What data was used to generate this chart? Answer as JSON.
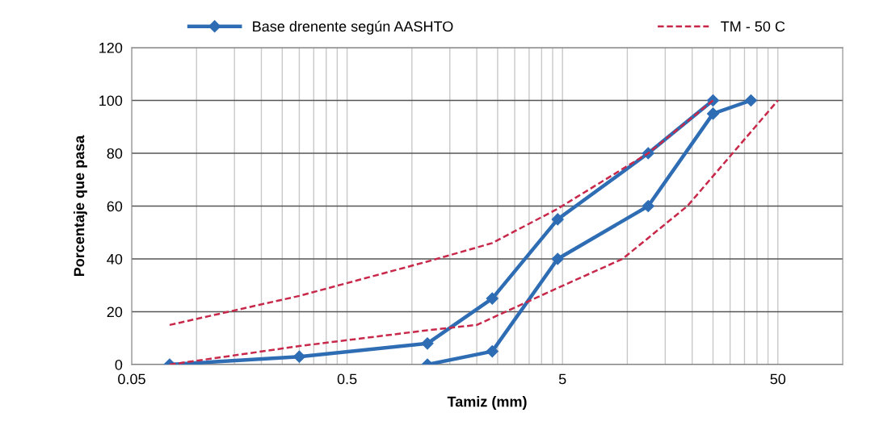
{
  "chart_data": {
    "type": "line",
    "xlabel": "Tamiz (mm)",
    "ylabel": "Porcentaje que pasa",
    "log": "x",
    "xlim": [
      0.05,
      100
    ],
    "ylim": [
      0,
      120
    ],
    "xticks": [
      0.05,
      {
        "value": 0.1,
        "label": null
      },
      {
        "value": 0.15,
        "label": null
      },
      {
        "value": 0.2,
        "label": null
      },
      {
        "value": 0.25,
        "label": null
      },
      {
        "value": 0.3,
        "label": null
      },
      {
        "value": 0.35,
        "label": null
      },
      {
        "value": 0.4,
        "label": null
      },
      {
        "value": 0.45,
        "label": null
      },
      0.5,
      {
        "value": 1,
        "label": null
      },
      {
        "value": 1.5,
        "label": null
      },
      {
        "value": 2,
        "label": null
      },
      {
        "value": 2.5,
        "label": null
      },
      {
        "value": 3,
        "label": null
      },
      {
        "value": 3.5,
        "label": null
      },
      {
        "value": 4,
        "label": null
      },
      {
        "value": 4.5,
        "label": null
      },
      5,
      {
        "value": 10,
        "label": null
      },
      {
        "value": 15,
        "label": null
      },
      {
        "value": 20,
        "label": null
      },
      {
        "value": 25,
        "label": null
      },
      {
        "value": 30,
        "label": null
      },
      {
        "value": 35,
        "label": null
      },
      {
        "value": 40,
        "label": null
      },
      {
        "value": 45,
        "label": null
      },
      50
    ],
    "yticks": [
      0,
      20,
      40,
      60,
      80,
      100,
      120
    ],
    "grid": true,
    "legend": "top",
    "series": [
      {
        "name": "Base drenente según AASHTO",
        "color": "#2e6db4",
        "marker": "diamond",
        "line_style": "solid",
        "x": [
          0.075,
          0.3,
          1.18,
          2.36,
          4.75,
          12.5,
          25
        ],
        "values": [
          0,
          3,
          8,
          25,
          55,
          80,
          100
        ]
      },
      {
        "color": "#2e6db4",
        "marker": "diamond",
        "line_style": "solid",
        "x": [
          1.18,
          2.36,
          4.75,
          12.5,
          25,
          37.5
        ],
        "values": [
          0,
          5,
          40,
          60,
          95,
          100
        ]
      },
      {
        "name": "TM - 50 C",
        "color": "#c8284a",
        "marker": "none",
        "line_style": "dashed",
        "x": [
          0.075,
          0.3,
          1.18,
          2.36,
          4.75,
          12.5,
          25
        ],
        "values": [
          15,
          26,
          39,
          46,
          59,
          80,
          100
        ]
      },
      {
        "color": "#c8284a",
        "marker": "none",
        "line_style": "dashed",
        "x": [
          0.075,
          0.3,
          1.18,
          2,
          4.75,
          9.5,
          19,
          50
        ],
        "values": [
          0,
          7,
          13,
          15,
          29,
          40,
          60,
          100
        ]
      }
    ]
  }
}
